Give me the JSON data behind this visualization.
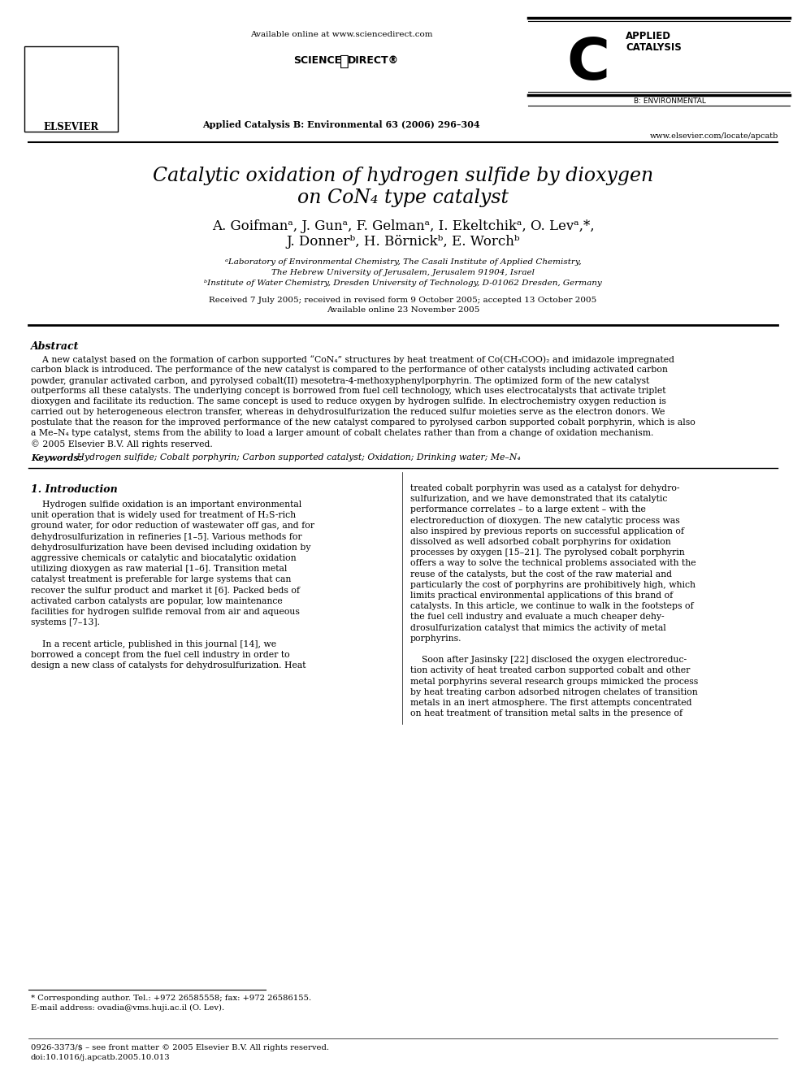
{
  "bg_color": "#ffffff",
  "header_available_online": "Available online at www.sciencedirect.com",
  "journal_info": "Applied Catalysis B: Environmental 63 (2006) 296–304",
  "website": "www.elsevier.com/locate/apcatb",
  "title_line1": "Catalytic oxidation of hydrogen sulfide by dioxygen",
  "title_line2": "on CoN₄ type catalyst",
  "authors_line1": "A. Goifmanᵃ, J. Gunᵃ, F. Gelmanᵃ, I. Ekeltchikᵃ, O. Levᵃ,*,",
  "authors_line2": "J. Donnerᵇ, H. Börnickᵇ, E. Worchᵇ",
  "affil1": "ᵃLaboratory of Environmental Chemistry, The Casali Institute of Applied Chemistry,",
  "affil2": "The Hebrew University of Jerusalem, Jerusalem 91904, Israel",
  "affil3": "ᵇInstitute of Water Chemistry, Dresden University of Technology, D-01062 Dresden, Germany",
  "received": "Received 7 July 2005; received in revised form 9 October 2005; accepted 13 October 2005",
  "available_online": "Available online 23 November 2005",
  "abstract_title": "Abstract",
  "keywords_label": "Keywords:",
  "keywords_text": " Hydrogen sulfide; Cobalt porphyrin; Carbon supported catalyst; Oxidation; Drinking water; Me–N₄",
  "section1_title": "1. Introduction",
  "footnote_corresponding": "* Corresponding author. Tel.: +972 26585558; fax: +972 26586155.",
  "footnote_email": "E-mail address: ovadia@vms.huji.ac.il (O. Lev).",
  "footer_issn": "0926-3373/$ – see front matter © 2005 Elsevier B.V. All rights reserved.",
  "footer_doi": "doi:10.1016/j.apcatb.2005.10.013",
  "abstract_lines": [
    "    A new catalyst based on the formation of carbon supported “CoN₄” structures by heat treatment of Co(CH₃COO)₂ and imidazole impregnated",
    "carbon black is introduced. The performance of the new catalyst is compared to the performance of other catalysts including activated carbon",
    "powder, granular activated carbon, and pyrolysed cobalt(II) mesotetra-4-methoxyphenylporphyrin. The optimized form of the new catalyst",
    "outperforms all these catalysts. The underlying concept is borrowed from fuel cell technology, which uses electrocatalysts that activate triplet",
    "dioxygen and facilitate its reduction. The same concept is used to reduce oxygen by hydrogen sulfide. In electrochemistry oxygen reduction is",
    "carried out by heterogeneous electron transfer, whereas in dehydrosulfurization the reduced sulfur moieties serve as the electron donors. We",
    "postulate that the reason for the improved performance of the new catalyst compared to pyrolysed carbon supported cobalt porphyrin, which is also",
    "a Me–N₄ type catalyst, stems from the ability to load a larger amount of cobalt chelates rather than from a change of oxidation mechanism.",
    "© 2005 Elsevier B.V. All rights reserved."
  ],
  "col1_lines": [
    "    Hydrogen sulfide oxidation is an important environmental",
    "unit operation that is widely used for treatment of H₂S-rich",
    "ground water, for odor reduction of wastewater off gas, and for",
    "dehydrosulfurization in refineries [1–5]. Various methods for",
    "dehydrosulfurization have been devised including oxidation by",
    "aggressive chemicals or catalytic and biocatalytic oxidation",
    "utilizing dioxygen as raw material [1–6]. Transition metal",
    "catalyst treatment is preferable for large systems that can",
    "recover the sulfur product and market it [6]. Packed beds of",
    "activated carbon catalysts are popular, low maintenance",
    "facilities for hydrogen sulfide removal from air and aqueous",
    "systems [7–13].",
    "",
    "    In a recent article, published in this journal [14], we",
    "borrowed a concept from the fuel cell industry in order to",
    "design a new class of catalysts for dehydrosulfurization. Heat"
  ],
  "col2_lines": [
    "treated cobalt porphyrin was used as a catalyst for dehydro-",
    "sulfurization, and we have demonstrated that its catalytic",
    "performance correlates – to a large extent – with the",
    "electroreduction of dioxygen. The new catalytic process was",
    "also inspired by previous reports on successful application of",
    "dissolved as well adsorbed cobalt porphyrins for oxidation",
    "processes by oxygen [15–21]. The pyrolysed cobalt porphyrin",
    "offers a way to solve the technical problems associated with the",
    "reuse of the catalysts, but the cost of the raw material and",
    "particularly the cost of porphyrins are prohibitively high, which",
    "limits practical environmental applications of this brand of",
    "catalysts. In this article, we continue to walk in the footsteps of",
    "the fuel cell industry and evaluate a much cheaper dehy-",
    "drosulfurization catalyst that mimics the activity of metal",
    "porphyrins.",
    "",
    "    Soon after Jasinsky [22] disclosed the oxygen electroreduc-",
    "tion activity of heat treated carbon supported cobalt and other",
    "metal porphyrins several research groups mimicked the process",
    "by heat treating carbon adsorbed nitrogen chelates of transition",
    "metals in an inert atmosphere. The first attempts concentrated",
    "on heat treatment of transition metal salts in the presence of"
  ]
}
